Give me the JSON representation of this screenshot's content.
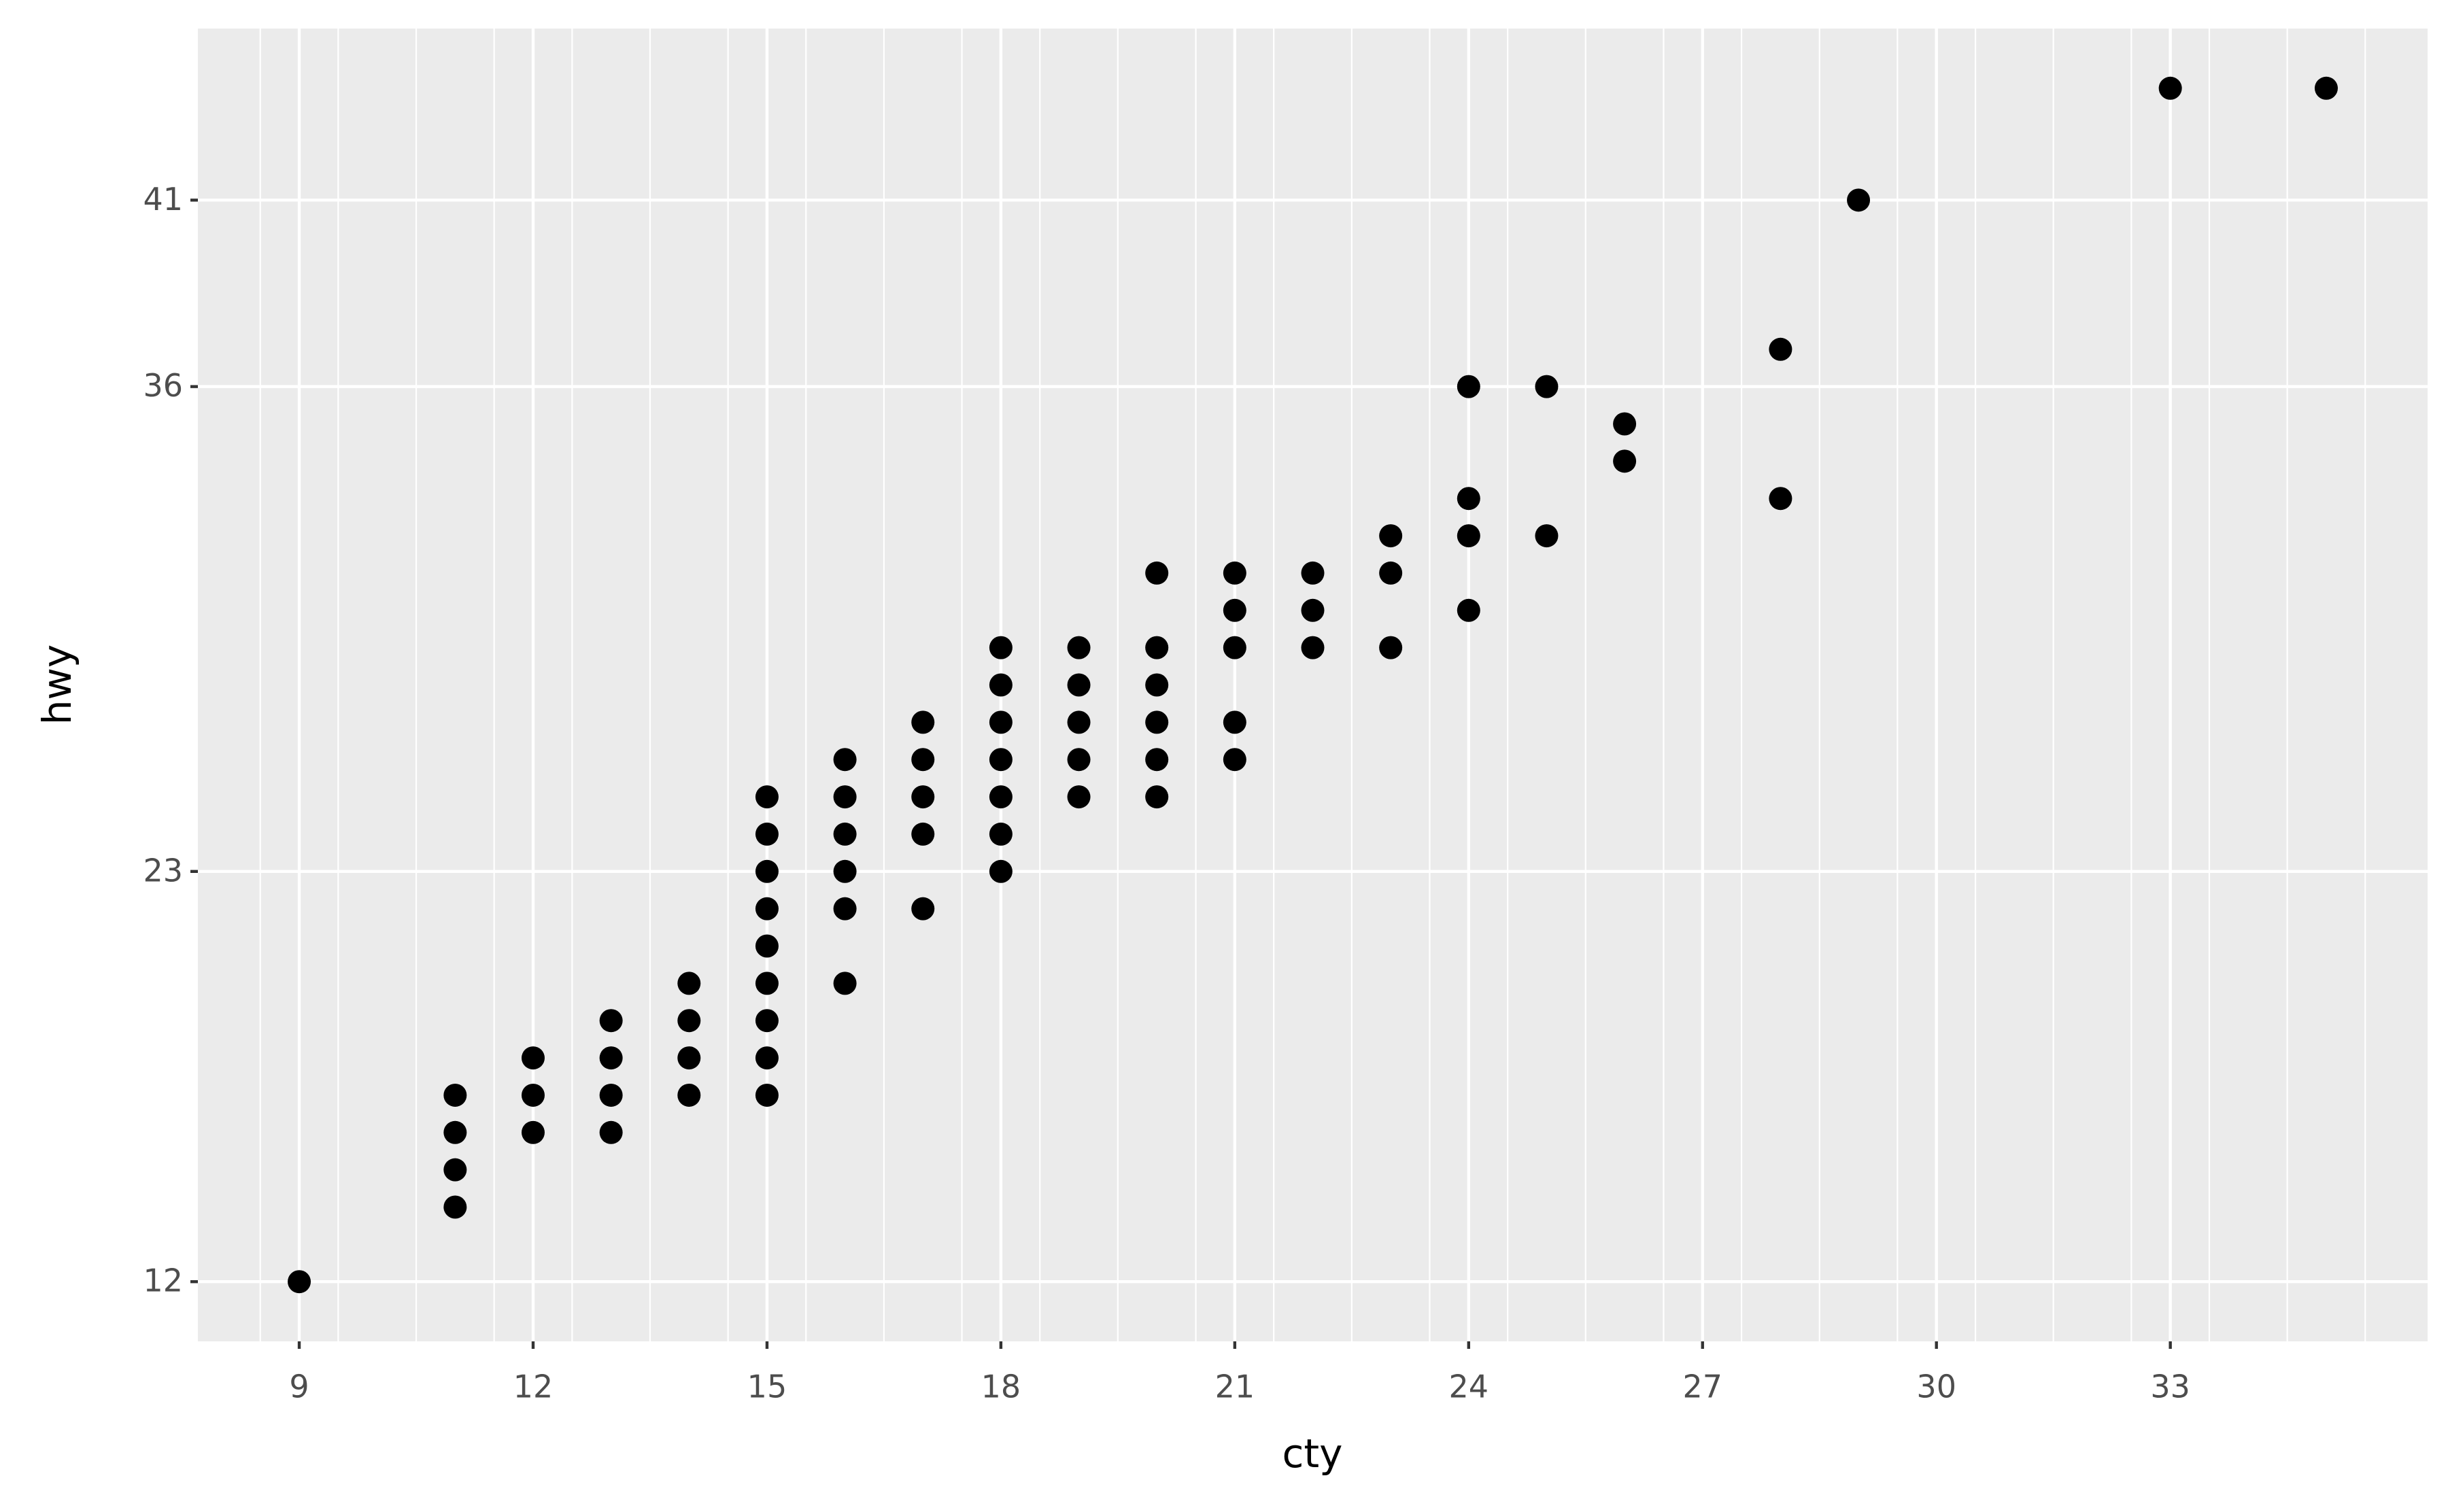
{
  "chart_data": {
    "type": "scatter",
    "xlabel": "cty",
    "ylabel": "hwy",
    "x": [
      9,
      11,
      11,
      11,
      11,
      12,
      12,
      12,
      13,
      13,
      13,
      13,
      14,
      14,
      14,
      14,
      15,
      15,
      15,
      15,
      15,
      15,
      15,
      15,
      15,
      16,
      16,
      16,
      16,
      16,
      16,
      17,
      17,
      17,
      17,
      17,
      18,
      18,
      18,
      18,
      18,
      18,
      18,
      19,
      19,
      19,
      19,
      19,
      20,
      20,
      20,
      20,
      20,
      20,
      21,
      21,
      21,
      21,
      21,
      22,
      22,
      22,
      23,
      23,
      23,
      24,
      24,
      24,
      24,
      25,
      25,
      26,
      26,
      28,
      28,
      29,
      33,
      35
    ],
    "values": [
      12,
      14,
      15,
      16,
      17,
      16,
      17,
      18,
      16,
      17,
      18,
      19,
      17,
      18,
      19,
      20,
      17,
      18,
      19,
      20,
      21,
      22,
      23,
      24,
      25,
      20,
      22,
      23,
      24,
      25,
      26,
      22,
      24,
      25,
      26,
      27,
      23,
      24,
      25,
      26,
      27,
      28,
      29,
      25,
      26,
      27,
      28,
      29,
      25,
      26,
      27,
      28,
      29,
      31,
      26,
      27,
      29,
      30,
      31,
      29,
      30,
      31,
      29,
      31,
      32,
      30,
      32,
      33,
      36,
      32,
      36,
      34,
      35,
      33,
      37,
      41,
      44,
      44
    ],
    "color": "#000000",
    "xlim": [
      7.7,
      36.3
    ],
    "ylim": [
      10.4,
      45.6
    ],
    "xticks": [
      9,
      12,
      15,
      18,
      21,
      24,
      27,
      30,
      33
    ],
    "yticks": [
      12,
      23,
      36,
      41
    ],
    "x_minor_grid": [
      8.5,
      9.5,
      10.5,
      11.5,
      12.5,
      13.5,
      14.5,
      15.5,
      16.5,
      17.5,
      18.5,
      19.5,
      20.5,
      21.5,
      22.5,
      23.5,
      24.5,
      25.5,
      26.5,
      27.5,
      28.5,
      29.5,
      30.5,
      31.5,
      32.5,
      33.5,
      34.5,
      35.5
    ],
    "grid": true
  }
}
